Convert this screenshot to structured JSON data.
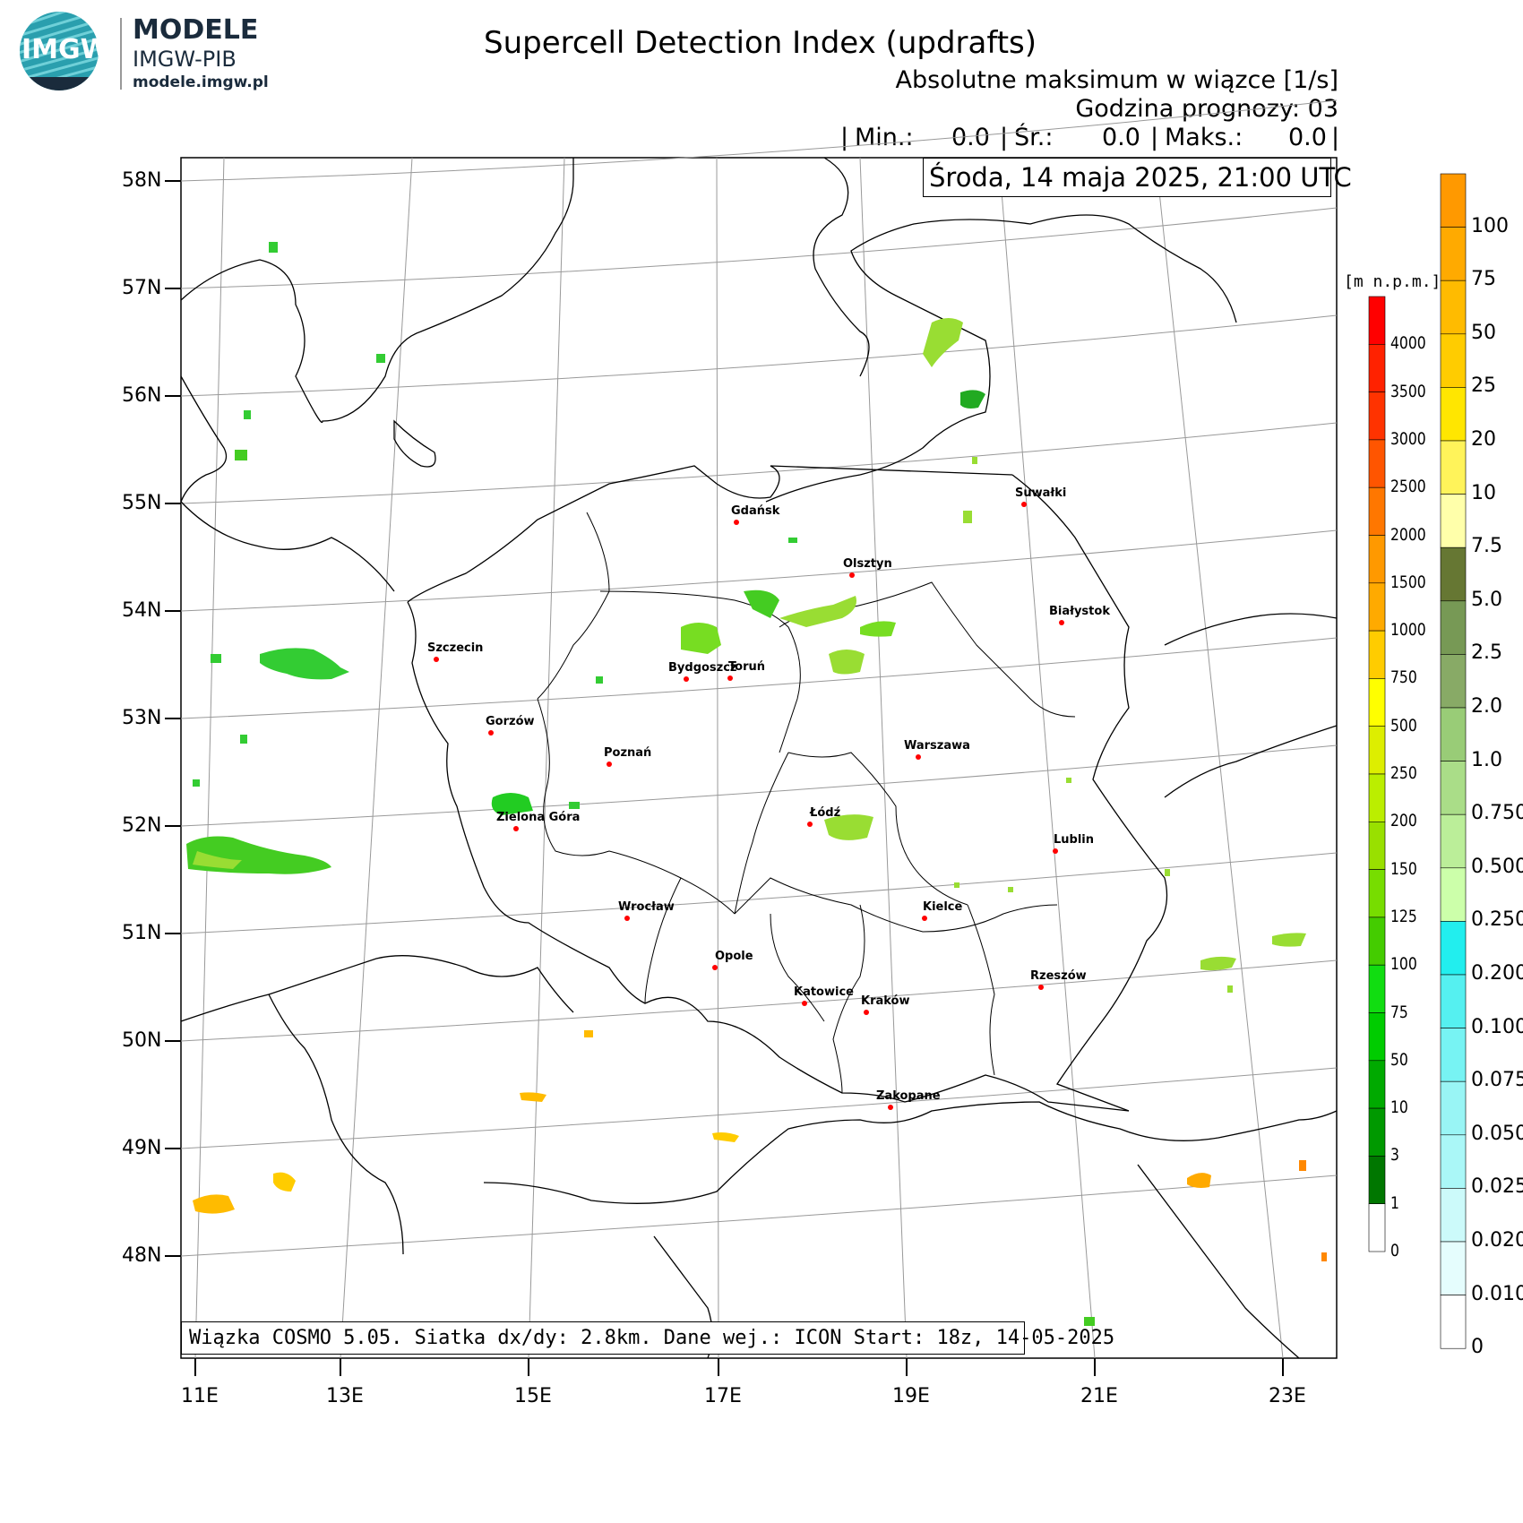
{
  "logo": {
    "mark": "IMGW",
    "brand_line1": "MODELE",
    "brand_line2": "IMGW-PIB",
    "brand_line3": "modele.imgw.pl"
  },
  "header": {
    "title": "Supercell Detection Index (updrafts)",
    "subtitle": "Absolutne maksimum w wiązce [1/s]",
    "forecast": "Godzina prognozy: 03",
    "stats": {
      "sep_open": "|",
      "min_label": "Min.:",
      "min_value": "0.0",
      "sep1": "|",
      "mean_label": "Śr.:",
      "mean_value": "0.0",
      "sep2": "|",
      "max_label": "Maks.:",
      "max_value": "0.0",
      "sep_close": "|"
    },
    "date": "Środa, 14 maja 2025, 21:00 UTC"
  },
  "footer": "Wiązka COSMO 5.05. Siatka dx/dy: 2.8km. Dane wej.: ICON Start: 18z, 14-05-2025",
  "axes": {
    "lat_labels": [
      "58N",
      "57N",
      "56N",
      "55N",
      "54N",
      "53N",
      "52N",
      "51N",
      "50N",
      "49N",
      "48N"
    ],
    "lon_labels": [
      "11E",
      "13E",
      "15E",
      "17E",
      "19E",
      "21E",
      "23E"
    ]
  },
  "cities": [
    {
      "name": "Gdańsk"
    },
    {
      "name": "Suwałki"
    },
    {
      "name": "Olsztyn"
    },
    {
      "name": "Białystok"
    },
    {
      "name": "Szczecin"
    },
    {
      "name": "Bydgoszcz"
    },
    {
      "name": "Toruń"
    },
    {
      "name": "Gorzów"
    },
    {
      "name": "Poznań"
    },
    {
      "name": "Warszawa"
    },
    {
      "name": "Łódź"
    },
    {
      "name": "Zielona Góra"
    },
    {
      "name": "Lublin"
    },
    {
      "name": "Wrocław"
    },
    {
      "name": "Kielce"
    },
    {
      "name": "Opole"
    },
    {
      "name": "Rzeszów"
    },
    {
      "name": "Katowice"
    },
    {
      "name": "Kraków"
    },
    {
      "name": "Zakopane"
    }
  ],
  "orography_colorbar": {
    "unit": "[m n.p.m.]",
    "labels": [
      "4000",
      "3500",
      "3000",
      "2500",
      "2000",
      "1500",
      "1000",
      "750",
      "500",
      "250",
      "200",
      "150",
      "125",
      "100",
      "75",
      "50",
      "10",
      "3",
      "1",
      "0"
    ],
    "colors": [
      "#ff0000",
      "#ff2200",
      "#ff3300",
      "#ff5500",
      "#ff7700",
      "#ff9900",
      "#ffaa00",
      "#ffcc00",
      "#ffff00",
      "#ddee00",
      "#bbee00",
      "#99e000",
      "#77dd00",
      "#44cc00",
      "#11dd11",
      "#00cc00",
      "#00aa00",
      "#009900",
      "#007700",
      "#ffffff"
    ]
  },
  "sdi_colorbar": {
    "labels": [
      "100",
      "75",
      "50",
      "25",
      "20",
      "10",
      "7.5",
      "5.0",
      "2.5",
      "2.0",
      "1.0",
      "0.750",
      "0.500",
      "0.250",
      "0.200",
      "0.100",
      "0.075",
      "0.050",
      "0.025",
      "0.020",
      "0.010",
      "0"
    ],
    "colors": [
      "#ff9900",
      "#ffaa00",
      "#ffbb00",
      "#ffcc00",
      "#ffe600",
      "#fff35a",
      "#ffffaa",
      "#667733",
      "#779955",
      "#88aa66",
      "#99cc77",
      "#aadd88",
      "#bbee99",
      "#ccffaa",
      "#22eeee",
      "#55f0f0",
      "#77f3f3",
      "#99f5f5",
      "#aaf7f7",
      "#ccfafa",
      "#e5fdfd",
      "#ffffff"
    ]
  },
  "colors": {
    "city_dot": "#ff0000",
    "grid": "#999999",
    "border": "#000000"
  }
}
